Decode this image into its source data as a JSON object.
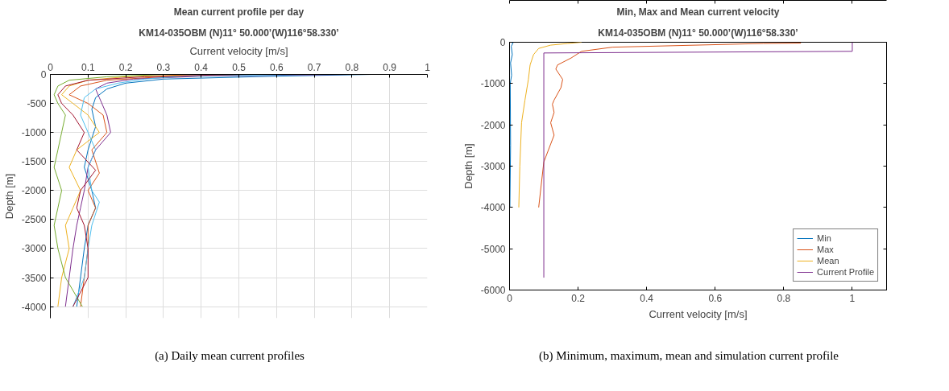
{
  "chart_data": [
    {
      "type": "line",
      "title": "Mean current profile per day",
      "subtitle": "KM14-035OBM (N)11° 50.000’(W)116°58.330’",
      "xlabel": "Current velocity [m/s]",
      "ylabel": "Depth [m]",
      "xlim": [
        0,
        1
      ],
      "xticks": [
        0,
        0.1,
        0.2,
        0.3,
        0.4,
        0.5,
        0.6,
        0.7,
        0.8,
        0.9,
        1
      ],
      "ylim": [
        -4200,
        0
      ],
      "yticks": [
        -4000,
        -3500,
        -3000,
        -2500,
        -2000,
        -1500,
        -1000,
        -500,
        0
      ],
      "grid": true,
      "legend": false,
      "annotations": [
        "(a) Daily mean current profiles"
      ],
      "series": [
        {
          "color": "#0072bd",
          "x": [
            0.85,
            0.6,
            0.3,
            0.2,
            0.15,
            0.12,
            0.11,
            0.12,
            0.1,
            0.09,
            0.11,
            0.12,
            0.1,
            0.09,
            0.08,
            0.07
          ],
          "values": [
            0,
            -30,
            -80,
            -150,
            -250,
            -400,
            -600,
            -900,
            -1300,
            -1600,
            -2000,
            -2300,
            -2600,
            -3000,
            -3500,
            -4000
          ]
        },
        {
          "color": "#d95319",
          "x": [
            0.6,
            0.3,
            0.15,
            0.08,
            0.05,
            0.1,
            0.14,
            0.15,
            0.11,
            0.13,
            0.1,
            0.12,
            0.1,
            0.1,
            0.09,
            0.08
          ],
          "values": [
            0,
            -40,
            -100,
            -200,
            -350,
            -500,
            -700,
            -1000,
            -1300,
            -1700,
            -2000,
            -2300,
            -2600,
            -3000,
            -3500,
            -4000
          ]
        },
        {
          "color": "#edb120",
          "x": [
            0.4,
            0.2,
            0.1,
            0.05,
            0.03,
            0.06,
            0.1,
            0.13,
            0.07,
            0.05,
            0.08,
            0.06,
            0.04,
            0.05,
            0.03,
            0.02
          ],
          "values": [
            0,
            -40,
            -100,
            -200,
            -350,
            -500,
            -700,
            -1000,
            -1300,
            -1600,
            -2000,
            -2300,
            -2600,
            -3000,
            -3500,
            -4000
          ]
        },
        {
          "color": "#7e2f8e",
          "x": [
            0.8,
            0.4,
            0.22,
            0.15,
            0.12,
            0.13,
            0.15,
            0.16,
            0.12,
            0.1,
            0.09,
            0.08,
            0.07,
            0.06,
            0.05,
            0.04
          ],
          "values": [
            0,
            -30,
            -80,
            -150,
            -250,
            -400,
            -700,
            -1000,
            -1300,
            -1600,
            -2000,
            -2300,
            -2600,
            -3000,
            -3500,
            -4000
          ]
        },
        {
          "color": "#77ac30",
          "x": [
            0.3,
            0.15,
            0.05,
            0.02,
            0.01,
            0.02,
            0.04,
            0.03,
            0.02,
            0.01,
            0.03,
            0.02,
            0.01,
            0.02,
            0.04,
            0.085
          ],
          "values": [
            0,
            -40,
            -100,
            -200,
            -350,
            -500,
            -700,
            -1000,
            -1300,
            -1600,
            -2000,
            -2300,
            -2600,
            -3000,
            -3500,
            -4000
          ]
        },
        {
          "color": "#4dbeee",
          "x": [
            0.7,
            0.35,
            0.25,
            0.18,
            0.12,
            0.09,
            0.08,
            0.1,
            0.12,
            0.1,
            0.11,
            0.13,
            0.11,
            0.1,
            0.09,
            0.06
          ],
          "values": [
            0,
            -30,
            -80,
            -150,
            -250,
            -400,
            -700,
            -1000,
            -1300,
            -1600,
            -2000,
            -2200,
            -2600,
            -3000,
            -3500,
            -4000
          ]
        },
        {
          "color": "#a2142f",
          "x": [
            0.5,
            0.25,
            0.1,
            0.04,
            0.02,
            0.03,
            0.06,
            0.09,
            0.07,
            0.12,
            0.08,
            0.07,
            0.09,
            0.1,
            0.1,
            0.06
          ],
          "values": [
            0,
            -40,
            -100,
            -200,
            -350,
            -500,
            -700,
            -1000,
            -1300,
            -1650,
            -2000,
            -2300,
            -2600,
            -3000,
            -3500,
            -4000
          ]
        }
      ]
    },
    {
      "type": "line",
      "title": "Min, Max and Mean current velocity",
      "subtitle": "KM14-035OBM (N)11° 50.000’(W)116°58.330’",
      "xlabel": "Current velocity [m/s]",
      "ylabel": "Depth [m]",
      "xlim": [
        0,
        1.1
      ],
      "xticks": [
        0,
        0.2,
        0.4,
        0.6,
        0.8,
        1
      ],
      "ylim": [
        -6000,
        0
      ],
      "yticks": [
        -6000,
        -5000,
        -4000,
        -3000,
        -2000,
        -1000,
        0
      ],
      "grid": false,
      "legend": "bottom right",
      "annotations": [
        "(b) Minimum, maximum, mean and simulation current profile"
      ],
      "series": [
        {
          "name": "Min",
          "color": "#0072bd",
          "x": [
            0.005,
            0.01,
            0.005,
            0.008,
            0.003,
            0.006,
            0.002,
            0.003,
            0.001
          ],
          "values": [
            0,
            -20,
            -100,
            -300,
            -500,
            -800,
            -1000,
            -2500,
            -4000
          ]
        },
        {
          "name": "Max",
          "color": "#d95319",
          "x": [
            0.85,
            0.74,
            0.3,
            0.21,
            0.18,
            0.14,
            0.135,
            0.155,
            0.15,
            0.13,
            0.125,
            0.13,
            0.12,
            0.13,
            0.1,
            0.085
          ],
          "values": [
            -20,
            -30,
            -120,
            -220,
            -380,
            -550,
            -650,
            -900,
            -1100,
            -1400,
            -1500,
            -1700,
            -1950,
            -2250,
            -2900,
            -4000
          ]
        },
        {
          "name": "Mean",
          "color": "#edb120",
          "x": [
            0.21,
            0.17,
            0.12,
            0.085,
            0.07,
            0.06,
            0.055,
            0.045,
            0.035,
            0.03,
            0.027
          ],
          "values": [
            0,
            -30,
            -70,
            -150,
            -300,
            -550,
            -900,
            -1400,
            -1950,
            -3000,
            -4000
          ]
        },
        {
          "name": "Current Profile",
          "color": "#7e2f8e",
          "x": [
            1,
            1,
            0.1,
            0.1
          ],
          "values": [
            0,
            -220,
            -260,
            -5700
          ]
        }
      ]
    }
  ]
}
